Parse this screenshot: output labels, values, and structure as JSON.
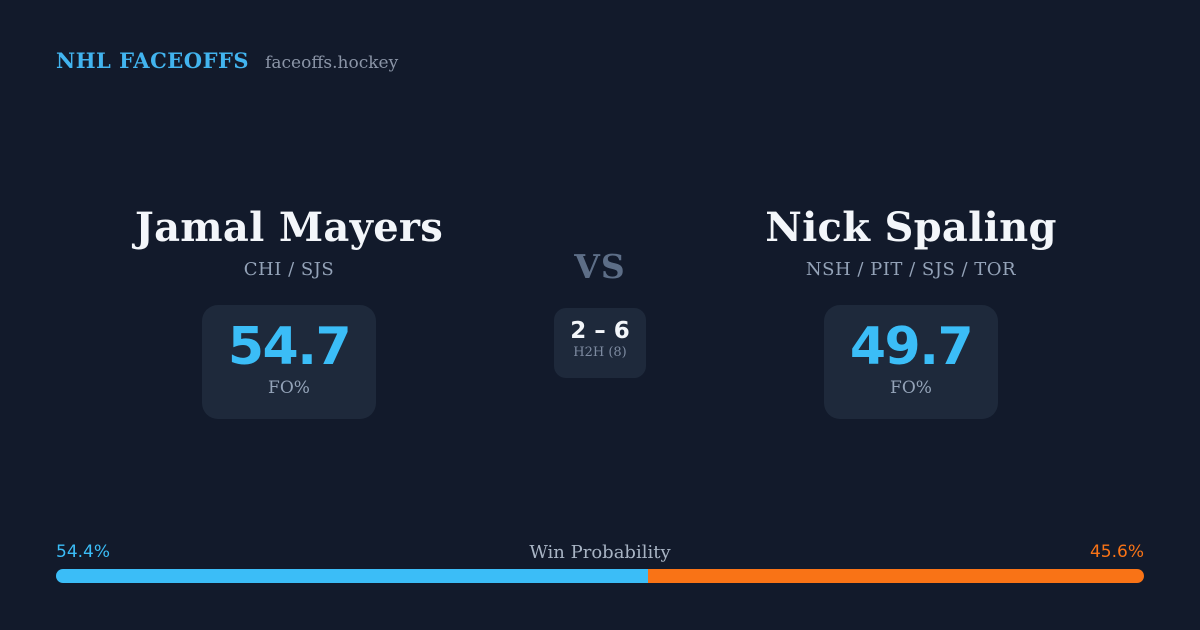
{
  "header": {
    "brand": "NHL FACEOFFS",
    "site": "faceoffs.hockey"
  },
  "matchup": {
    "vs_label": "VS",
    "h2h": {
      "score": "2 – 6",
      "label": "H2H (8)"
    },
    "left_player": {
      "name": "Jamal Mayers",
      "teams": "CHI / SJS",
      "stat_value": "54.7",
      "stat_label": "FO%"
    },
    "right_player": {
      "name": "Nick Spaling",
      "teams": "NSH / PIT / SJS / TOR",
      "stat_value": "49.7",
      "stat_label": "FO%"
    }
  },
  "win_bar": {
    "title": "Win Probability",
    "left_pct_label": "54.4%",
    "right_pct_label": "45.6%",
    "left_pct": 54.4,
    "right_pct": 45.6,
    "left_color": "#3bbdf7",
    "right_color": "#f97316"
  },
  "colors": {
    "background": "#121a2b",
    "card_background": "#1e293b",
    "accent_blue": "#3bbdf7",
    "accent_orange": "#f97316",
    "text_primary": "#f3f6fa",
    "text_muted": "#94a3b8"
  }
}
